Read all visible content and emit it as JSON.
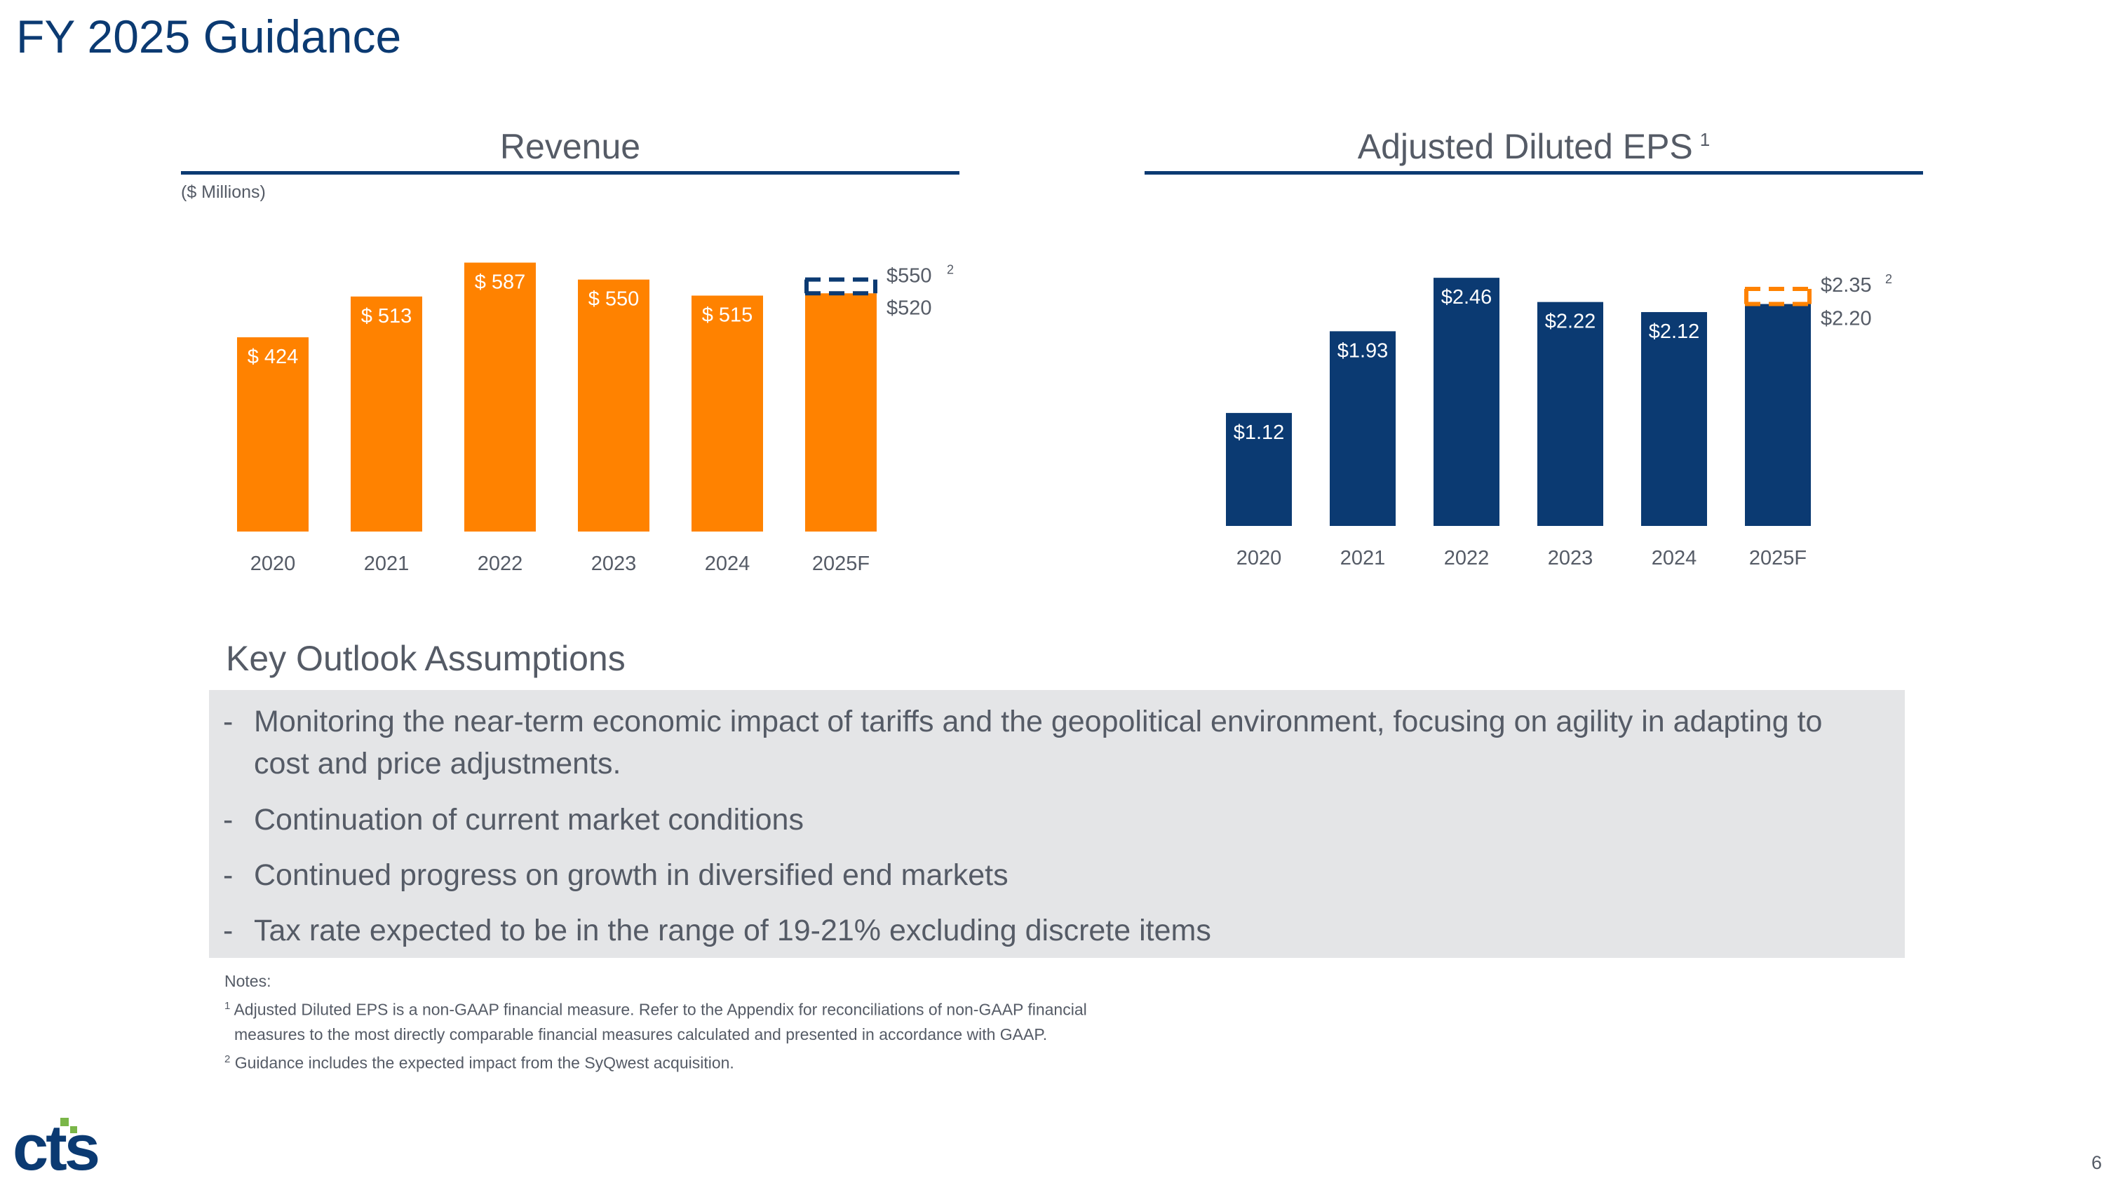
{
  "title": "FY 2025 Guidance",
  "chart_data": [
    {
      "type": "bar",
      "title": "Revenue",
      "unit_label": "($ Millions)",
      "categories": [
        "2020",
        "2021",
        "2022",
        "2023",
        "2024",
        "2025F"
      ],
      "values": [
        424,
        513,
        587,
        550,
        515,
        520
      ],
      "data_labels": [
        "$ 424",
        "$ 513",
        "$ 587",
        "$ 550",
        "$ 515",
        ""
      ],
      "guidance_range": {
        "low": 520,
        "high": 550,
        "low_label": "$520",
        "high_label": "$550",
        "note_ref": "2"
      },
      "bar_color": "#ff8200",
      "range_color": "#0b3a72",
      "ylim": [
        0,
        600
      ],
      "xlabel": "",
      "ylabel": ""
    },
    {
      "type": "bar",
      "title": "Adjusted Diluted EPS",
      "title_note_ref": "1",
      "categories": [
        "2020",
        "2021",
        "2022",
        "2023",
        "2024",
        "2025F"
      ],
      "values": [
        1.12,
        1.93,
        2.46,
        2.22,
        2.12,
        2.2
      ],
      "data_labels": [
        "$1.12",
        "$1.93",
        "$2.46",
        "$2.22",
        "$2.12",
        ""
      ],
      "guidance_range": {
        "low": 2.2,
        "high": 2.35,
        "low_label": "$2.20",
        "high_label": "$2.35",
        "note_ref": "2"
      },
      "bar_color": "#0b3a72",
      "range_color": "#ff8200",
      "ylim": [
        0,
        2.6
      ],
      "xlabel": "",
      "ylabel": ""
    }
  ],
  "key_outlook": {
    "title": "Key Outlook Assumptions",
    "bullet": "-",
    "items": [
      "Monitoring the near-term economic impact of tariffs and the geopolitical environment, focusing on agility in adapting to cost and price adjustments.",
      "Continuation of current market conditions",
      "Continued progress on growth in diversified end markets",
      "Tax rate expected to be in the range of 19-21% excluding discrete items"
    ]
  },
  "notes": {
    "heading": "Notes:",
    "n1_ref": "1",
    "n1_line1": "Adjusted Diluted EPS is a non-GAAP financial measure. Refer to the Appendix for reconciliations of non-GAAP financial",
    "n1_line2": "measures to the most directly comparable financial measures calculated and presented in accordance with GAAP.",
    "n2_ref": "2",
    "n2_line": "Guidance includes the expected impact from the SyQwest acquisition."
  },
  "logo_text": "cts",
  "page_number": "6",
  "colors": {
    "navy": "#0b3a72",
    "orange": "#ff8200",
    "gray_text": "#555b66",
    "panel": "#e4e5e7",
    "logo_green": "#7ab648"
  }
}
